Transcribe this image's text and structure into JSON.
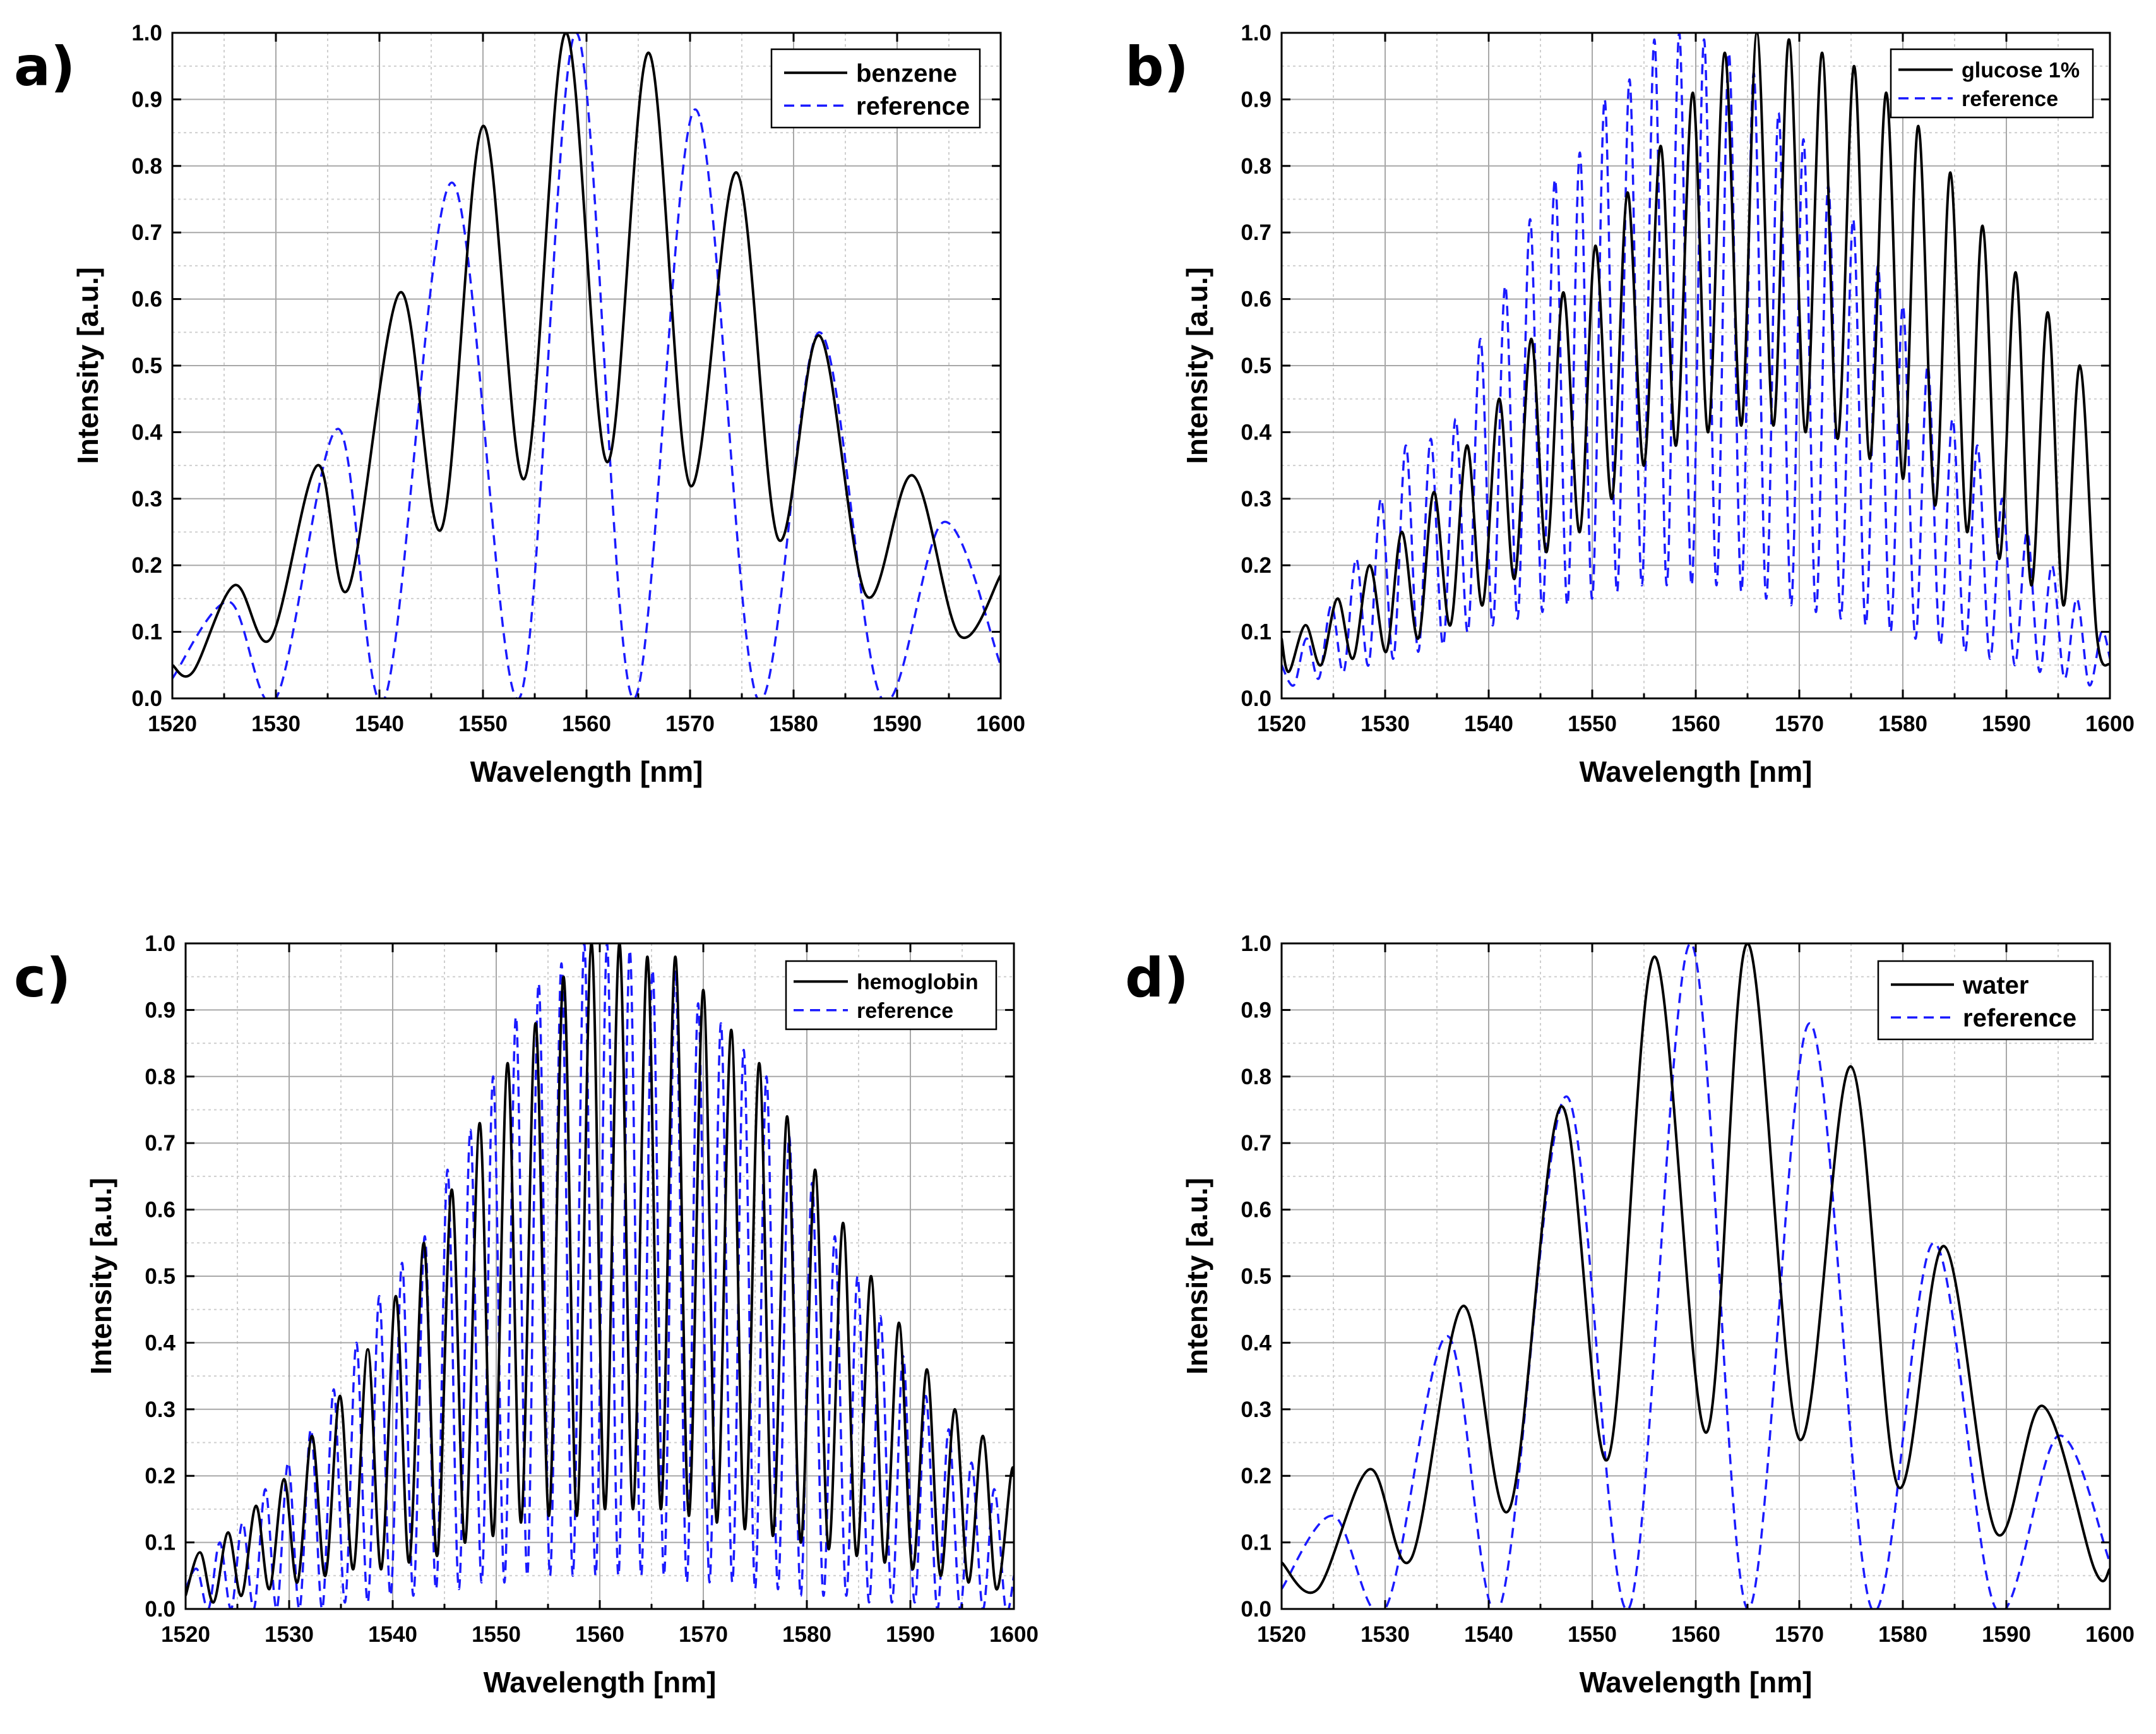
{
  "colors": {
    "sample": "#000000",
    "reference": "#1a1aff"
  },
  "chart_data": [
    {
      "type": "line",
      "panel_label": "a)",
      "xlabel": "Wavelength [nm]",
      "ylabel": "Intensity [a.u.]",
      "xlim": [
        1520,
        1600
      ],
      "ylim": [
        0.0,
        1.0
      ],
      "xticks": [
        "1520",
        "1530",
        "1540",
        "1550",
        "1560",
        "1570",
        "1580",
        "1590",
        "1600"
      ],
      "yticks": [
        "0.0",
        "0.1",
        "0.2",
        "0.3",
        "0.4",
        "0.5",
        "0.6",
        "0.7",
        "0.8",
        "0.9",
        "1.0"
      ],
      "grid": true,
      "legend_position": "top-right",
      "series": [
        {
          "name": "benzene",
          "style": "solid",
          "x": [
            1520,
            1522,
            1526,
            1529.5,
            1534,
            1537,
            1542,
            1546,
            1550,
            1554,
            1558,
            1562,
            1566,
            1570,
            1574.5,
            1578.5,
            1582.5,
            1587,
            1591.5,
            1596,
            1600
          ],
          "y": [
            0.05,
            0.04,
            0.17,
            0.09,
            0.35,
            0.165,
            0.61,
            0.255,
            0.86,
            0.33,
            1.0,
            0.355,
            0.97,
            0.32,
            0.79,
            0.24,
            0.545,
            0.155,
            0.335,
            0.095,
            0.185
          ]
        },
        {
          "name": "reference",
          "style": "dashed",
          "x": [
            1520,
            1525.5,
            1530,
            1536,
            1540.5,
            1547,
            1553.5,
            1559,
            1564.5,
            1570.5,
            1576.5,
            1582.5,
            1588.5,
            1594.5,
            1600
          ],
          "y": [
            0.03,
            0.145,
            0.0,
            0.405,
            0.0,
            0.775,
            0.0,
            1.0,
            0.0,
            0.885,
            0.0,
            0.55,
            0.0,
            0.265,
            0.05
          ]
        }
      ]
    },
    {
      "type": "line",
      "panel_label": "b)",
      "xlabel": "Wavelength [nm]",
      "ylabel": "Intensity [a.u.]",
      "xlim": [
        1520,
        1600
      ],
      "ylim": [
        0.0,
        1.0
      ],
      "xticks": [
        "1520",
        "1530",
        "1540",
        "1550",
        "1560",
        "1570",
        "1580",
        "1590",
        "1600"
      ],
      "yticks": [
        "0.0",
        "0.1",
        "0.2",
        "0.3",
        "0.4",
        "0.5",
        "0.6",
        "0.7",
        "0.8",
        "0.9",
        "1.0"
      ],
      "grid": true,
      "legend_position": "top-right",
      "series": [
        {
          "name": "glucose 1%",
          "style": "solid",
          "x": [
            1520,
            1520.7,
            1522.3,
            1523.8,
            1525.4,
            1526.9,
            1528.5,
            1530.1,
            1531.6,
            1533.2,
            1534.7,
            1536.3,
            1537.9,
            1539.4,
            1541.0,
            1542.5,
            1544.1,
            1545.6,
            1547.2,
            1548.8,
            1550.3,
            1551.9,
            1553.4,
            1555.0,
            1556.6,
            1558.1,
            1559.7,
            1561.2,
            1562.8,
            1564.4,
            1565.9,
            1567.5,
            1569.0,
            1570.6,
            1572.2,
            1573.7,
            1575.3,
            1576.8,
            1578.4,
            1580.0,
            1581.5,
            1583.1,
            1584.6,
            1586.2,
            1587.7,
            1589.3,
            1590.9,
            1592.4,
            1594.0,
            1595.5,
            1597.1,
            1598.7,
            1600
          ],
          "y": [
            0.09,
            0.04,
            0.11,
            0.05,
            0.15,
            0.06,
            0.2,
            0.07,
            0.25,
            0.09,
            0.31,
            0.11,
            0.38,
            0.14,
            0.45,
            0.18,
            0.54,
            0.22,
            0.61,
            0.25,
            0.68,
            0.3,
            0.76,
            0.35,
            0.83,
            0.38,
            0.91,
            0.4,
            0.97,
            0.41,
            1.0,
            0.41,
            0.99,
            0.4,
            0.97,
            0.39,
            0.95,
            0.36,
            0.91,
            0.33,
            0.86,
            0.29,
            0.79,
            0.25,
            0.71,
            0.21,
            0.64,
            0.17,
            0.58,
            0.14,
            0.5,
            0.1,
            0.05
          ]
        },
        {
          "name": "reference",
          "style": "dashed",
          "x": [
            1520,
            1521.2,
            1522.4,
            1523.6,
            1524.8,
            1526.0,
            1527.2,
            1528.4,
            1529.6,
            1530.8,
            1532.0,
            1533.2,
            1534.4,
            1535.6,
            1536.8,
            1538.0,
            1539.2,
            1540.4,
            1541.6,
            1542.8,
            1544.0,
            1545.2,
            1546.4,
            1547.6,
            1548.8,
            1550.0,
            1551.2,
            1552.4,
            1553.6,
            1554.8,
            1556.0,
            1557.2,
            1558.4,
            1559.6,
            1560.8,
            1562.0,
            1563.2,
            1564.4,
            1565.6,
            1566.8,
            1568.0,
            1569.2,
            1570.4,
            1571.6,
            1572.8,
            1574.0,
            1575.2,
            1576.4,
            1577.6,
            1578.8,
            1580.0,
            1581.2,
            1582.4,
            1583.6,
            1584.8,
            1586.0,
            1587.2,
            1588.4,
            1589.6,
            1590.8,
            1592.0,
            1593.2,
            1594.4,
            1595.6,
            1596.8,
            1598.0,
            1599.2,
            1600
          ],
          "y": [
            0.05,
            0.02,
            0.09,
            0.03,
            0.14,
            0.04,
            0.21,
            0.05,
            0.3,
            0.06,
            0.38,
            0.07,
            0.39,
            0.08,
            0.42,
            0.1,
            0.54,
            0.11,
            0.62,
            0.12,
            0.72,
            0.13,
            0.78,
            0.14,
            0.82,
            0.15,
            0.9,
            0.16,
            0.93,
            0.17,
            0.99,
            0.17,
            1.0,
            0.17,
            0.99,
            0.17,
            0.97,
            0.16,
            0.94,
            0.15,
            0.88,
            0.14,
            0.84,
            0.13,
            0.77,
            0.12,
            0.72,
            0.11,
            0.65,
            0.1,
            0.59,
            0.09,
            0.5,
            0.08,
            0.42,
            0.07,
            0.38,
            0.06,
            0.3,
            0.05,
            0.25,
            0.04,
            0.2,
            0.03,
            0.15,
            0.02,
            0.1,
            0.06
          ]
        }
      ]
    },
    {
      "type": "line",
      "panel_label": "c)",
      "xlabel": "Wavelength [nm]",
      "ylabel": "Intensity [a.u.]",
      "xlim": [
        1520,
        1600
      ],
      "ylim": [
        0.0,
        1.0
      ],
      "xticks": [
        "1520",
        "1530",
        "1540",
        "1550",
        "1560",
        "1570",
        "1580",
        "1590",
        "1600"
      ],
      "yticks": [
        "0.0",
        "0.1",
        "0.2",
        "0.3",
        "0.4",
        "0.5",
        "0.6",
        "0.7",
        "0.8",
        "0.9",
        "1.0"
      ],
      "grid": true,
      "legend_position": "top-right",
      "series": [
        {
          "name": "hemoglobin",
          "style": "solid",
          "x": [
            1520,
            1521.4,
            1522.7,
            1524.1,
            1525.4,
            1526.8,
            1528.1,
            1529.5,
            1530.8,
            1532.2,
            1533.5,
            1534.9,
            1536.2,
            1537.6,
            1538.9,
            1540.3,
            1541.6,
            1543.0,
            1544.3,
            1545.7,
            1547.0,
            1548.4,
            1549.7,
            1551.1,
            1552.4,
            1553.8,
            1555.1,
            1556.5,
            1557.8,
            1559.2,
            1560.5,
            1561.9,
            1563.2,
            1564.6,
            1565.9,
            1567.3,
            1568.6,
            1570.0,
            1571.3,
            1572.7,
            1574.0,
            1575.4,
            1576.7,
            1578.1,
            1579.4,
            1580.8,
            1582.1,
            1583.5,
            1584.8,
            1586.2,
            1587.5,
            1588.9,
            1590.2,
            1591.6,
            1592.9,
            1594.3,
            1595.6,
            1597.0,
            1598.3,
            1599.7,
            1600
          ],
          "y": [
            0.02,
            0.085,
            0.01,
            0.115,
            0.02,
            0.155,
            0.03,
            0.195,
            0.04,
            0.26,
            0.05,
            0.32,
            0.06,
            0.39,
            0.06,
            0.47,
            0.07,
            0.55,
            0.08,
            0.63,
            0.1,
            0.73,
            0.11,
            0.82,
            0.13,
            0.88,
            0.14,
            0.95,
            0.14,
            1.0,
            0.15,
            1.0,
            0.15,
            0.98,
            0.15,
            0.98,
            0.14,
            0.93,
            0.13,
            0.87,
            0.12,
            0.82,
            0.11,
            0.74,
            0.1,
            0.66,
            0.09,
            0.58,
            0.08,
            0.5,
            0.07,
            0.43,
            0.06,
            0.36,
            0.05,
            0.3,
            0.04,
            0.26,
            0.03,
            0.2,
            0.2
          ]
        },
        {
          "name": "reference",
          "style": "dashed",
          "x": [
            1520,
            1521.1,
            1522.2,
            1523.3,
            1524.4,
            1525.5,
            1526.6,
            1527.7,
            1528.8,
            1529.9,
            1531.0,
            1532.1,
            1533.2,
            1534.3,
            1535.4,
            1536.5,
            1537.6,
            1538.7,
            1539.8,
            1540.9,
            1542.0,
            1543.1,
            1544.2,
            1545.3,
            1546.4,
            1547.5,
            1548.6,
            1549.7,
            1550.8,
            1551.9,
            1553.0,
            1554.1,
            1555.2,
            1556.3,
            1557.4,
            1558.5,
            1559.6,
            1560.7,
            1561.8,
            1562.9,
            1564.0,
            1565.1,
            1566.2,
            1567.3,
            1568.4,
            1569.5,
            1570.6,
            1571.7,
            1572.8,
            1573.9,
            1575.0,
            1576.1,
            1577.2,
            1578.3,
            1579.4,
            1580.5,
            1581.6,
            1582.7,
            1583.8,
            1584.9,
            1586.0,
            1587.1,
            1588.2,
            1589.3,
            1590.4,
            1591.5,
            1592.6,
            1593.7,
            1594.8,
            1595.9,
            1597.0,
            1598.1,
            1599.2,
            1600
          ],
          "y": [
            0.03,
            0.06,
            0.0,
            0.1,
            0.0,
            0.13,
            0.0,
            0.18,
            0.0,
            0.22,
            0.0,
            0.27,
            0.0,
            0.33,
            0.01,
            0.4,
            0.01,
            0.47,
            0.02,
            0.52,
            0.02,
            0.56,
            0.03,
            0.66,
            0.03,
            0.72,
            0.04,
            0.8,
            0.04,
            0.89,
            0.05,
            0.94,
            0.05,
            0.97,
            0.05,
            1.0,
            0.05,
            1.0,
            0.05,
            0.99,
            0.05,
            0.96,
            0.05,
            0.96,
            0.04,
            0.91,
            0.04,
            0.88,
            0.04,
            0.84,
            0.03,
            0.8,
            0.03,
            0.71,
            0.02,
            0.64,
            0.02,
            0.56,
            0.02,
            0.5,
            0.01,
            0.44,
            0.01,
            0.38,
            0.01,
            0.32,
            0.0,
            0.27,
            0.0,
            0.22,
            0.0,
            0.18,
            0.0,
            0.05
          ]
        }
      ]
    },
    {
      "type": "line",
      "panel_label": "d)",
      "xlabel": "Wavelength [nm]",
      "ylabel": "Intensity [a.u.]",
      "xlim": [
        1520,
        1600
      ],
      "ylim": [
        0.0,
        1.0
      ],
      "xticks": [
        "1520",
        "1530",
        "1540",
        "1550",
        "1560",
        "1570",
        "1580",
        "1590",
        "1600"
      ],
      "yticks": [
        "0.0",
        "0.1",
        "0.2",
        "0.3",
        "0.4",
        "0.5",
        "0.6",
        "0.7",
        "0.8",
        "0.9",
        "1.0"
      ],
      "grid": true,
      "legend_position": "top-right",
      "series": [
        {
          "name": "water",
          "style": "solid",
          "x": [
            1520,
            1523.5,
            1528.5,
            1532.5,
            1537.5,
            1542,
            1547,
            1551.5,
            1556,
            1561,
            1565,
            1570,
            1575,
            1579.5,
            1584,
            1589,
            1593.5,
            1598.5,
            1600
          ],
          "y": [
            0.07,
            0.03,
            0.21,
            0.075,
            0.455,
            0.15,
            0.755,
            0.225,
            0.98,
            0.265,
            1.0,
            0.255,
            0.815,
            0.185,
            0.545,
            0.115,
            0.305,
            0.06,
            0.06
          ]
        },
        {
          "name": "reference",
          "style": "dashed",
          "x": [
            1520,
            1525,
            1530,
            1536,
            1541,
            1547.5,
            1553.5,
            1559.5,
            1565,
            1571,
            1577,
            1583,
            1589,
            1595,
            1600
          ],
          "y": [
            0.03,
            0.14,
            0.0,
            0.41,
            0.0,
            0.77,
            0.0,
            1.0,
            0.0,
            0.88,
            0.0,
            0.55,
            0.0,
            0.26,
            0.07
          ]
        }
      ]
    }
  ]
}
